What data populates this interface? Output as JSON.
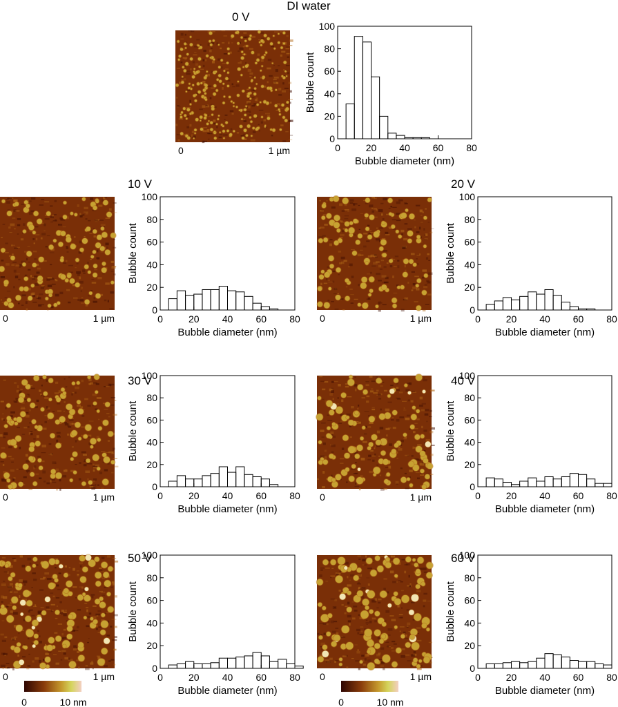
{
  "title": "DI water",
  "axes": {
    "xlabel": "Bubble diameter (nm)",
    "ylabel": "Bubble count",
    "xlim": [
      0,
      80
    ],
    "ylim": [
      0,
      100
    ],
    "xticks": [
      "0",
      "20",
      "40",
      "60",
      "80"
    ],
    "yticks": [
      "0",
      "20",
      "40",
      "60",
      "80",
      "100"
    ]
  },
  "afm": {
    "scale_start": "0",
    "scale_end": "1 µm",
    "colors": [
      "#3e0d02",
      "#7a2f07",
      "#b26a18",
      "#c7a232",
      "#f2e6b4"
    ]
  },
  "colorbar": {
    "min_label": "0",
    "max_label": "10 nm",
    "gradient": [
      "#2e0602",
      "#8a3c0b",
      "#c59a2d",
      "#d4d45c",
      "#f3cfc2"
    ]
  },
  "chart_data": [
    {
      "type": "bar",
      "label": "0 V",
      "bin_width": 5,
      "x_start": 5,
      "values": [
        31,
        91,
        86,
        55,
        20,
        5,
        3,
        1,
        1,
        1
      ],
      "xlim": [
        0,
        80
      ],
      "ylim": [
        0,
        100
      ],
      "grid": false,
      "xlabel": "Bubble diameter (nm)",
      "ylabel": "Bubble count"
    },
    {
      "type": "bar",
      "label": "10 V",
      "bin_width": 5,
      "x_start": 5,
      "values": [
        10,
        17,
        13,
        14,
        18,
        18,
        21,
        17,
        16,
        12,
        6,
        3,
        1
      ],
      "xlim": [
        0,
        80
      ],
      "ylim": [
        0,
        100
      ],
      "grid": false,
      "xlabel": "Bubble diameter (nm)",
      "ylabel": "Bubble count"
    },
    {
      "type": "bar",
      "label": "20 V",
      "bin_width": 5,
      "x_start": 5,
      "values": [
        5,
        8,
        11,
        9,
        12,
        16,
        14,
        18,
        13,
        7,
        3,
        1,
        1,
        0
      ],
      "xlim": [
        0,
        80
      ],
      "ylim": [
        0,
        100
      ],
      "grid": false,
      "xlabel": "Bubble diameter (nm)",
      "ylabel": "Bubble count"
    },
    {
      "type": "bar",
      "label": "30 V",
      "bin_width": 5,
      "x_start": 5,
      "values": [
        5,
        10,
        7,
        7,
        10,
        12,
        18,
        13,
        18,
        11,
        9,
        7,
        2
      ],
      "xlim": [
        0,
        80
      ],
      "ylim": [
        0,
        100
      ],
      "grid": false,
      "xlabel": "Bubble diameter (nm)",
      "ylabel": "Bubble count"
    },
    {
      "type": "bar",
      "label": "40 V",
      "bin_width": 5,
      "x_start": 5,
      "values": [
        8,
        7,
        4,
        2,
        5,
        8,
        5,
        9,
        7,
        9,
        12,
        11,
        7,
        3,
        3
      ],
      "xlim": [
        0,
        80
      ],
      "ylim": [
        0,
        100
      ],
      "grid": false,
      "xlabel": "Bubble diameter (nm)",
      "ylabel": "Bubble count"
    },
    {
      "type": "bar",
      "label": "50 V",
      "bin_width": 5,
      "x_start": 5,
      "values": [
        3,
        4,
        6,
        4,
        4,
        5,
        9,
        9,
        10,
        11,
        14,
        11,
        6,
        8,
        4,
        2
      ],
      "xlim": [
        0,
        80
      ],
      "ylim": [
        0,
        100
      ],
      "grid": false,
      "xlabel": "Bubble diameter (nm)",
      "ylabel": "Bubble count"
    },
    {
      "type": "bar",
      "label": "60 V",
      "bin_width": 5,
      "x_start": 5,
      "values": [
        4,
        4,
        5,
        6,
        5,
        6,
        9,
        13,
        12,
        10,
        7,
        6,
        6,
        4,
        3
      ],
      "xlim": [
        0,
        80
      ],
      "ylim": [
        0,
        100
      ],
      "grid": false,
      "xlabel": "Bubble diameter (nm)",
      "ylabel": "Bubble count"
    }
  ]
}
